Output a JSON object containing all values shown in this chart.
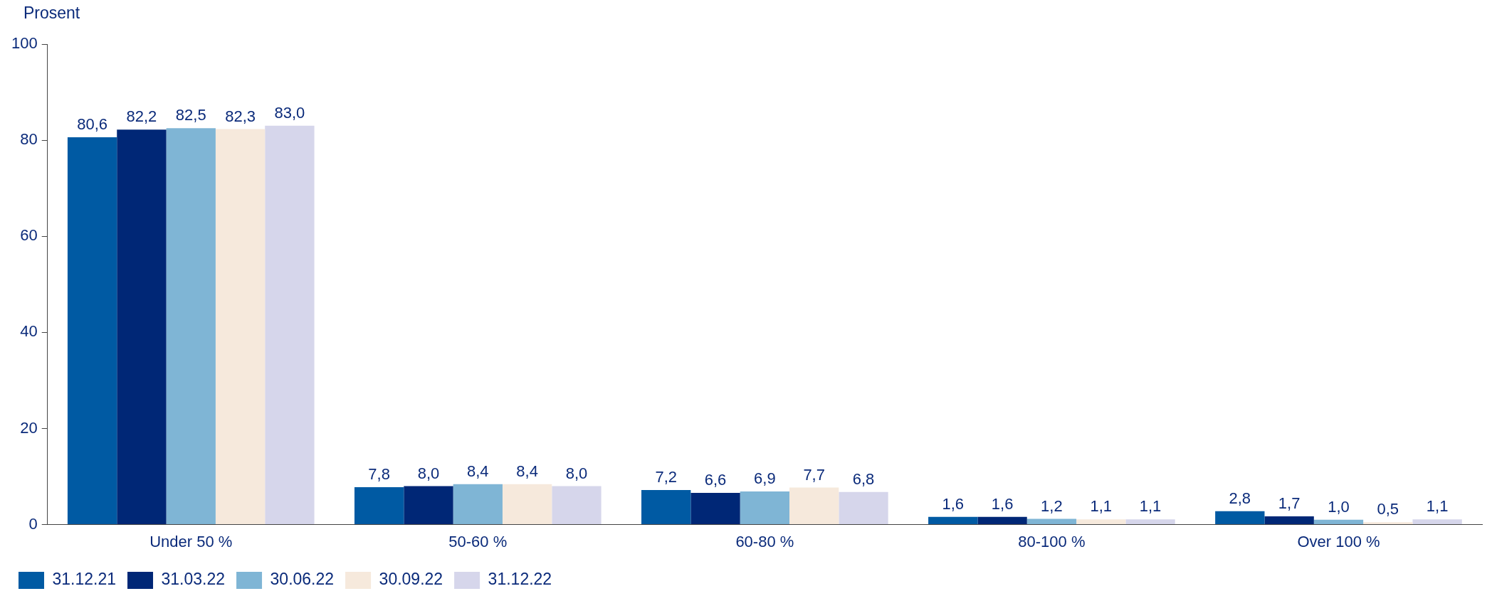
{
  "chart_data": {
    "type": "bar",
    "ylabel": "Prosent",
    "categories": [
      "Under 50 %",
      "50-60 %",
      "60-80 %",
      "80-100 %",
      "Over 100 %"
    ],
    "series": [
      {
        "name": "31.12.21",
        "color": "#005aa3",
        "values": [
          80.6,
          7.8,
          7.2,
          1.6,
          2.8
        ],
        "value_labels": [
          "80,6",
          "7,8",
          "7,2",
          "1,6",
          "2,8"
        ]
      },
      {
        "name": "31.03.22",
        "color": "#002776",
        "values": [
          82.2,
          8.0,
          6.6,
          1.6,
          1.7
        ],
        "value_labels": [
          "82,2",
          "8,0",
          "6,6",
          "1,6",
          "1,7"
        ]
      },
      {
        "name": "30.06.22",
        "color": "#7fb5d5",
        "values": [
          82.5,
          8.4,
          6.9,
          1.2,
          1.0
        ],
        "value_labels": [
          "82,5",
          "8,4",
          "6,9",
          "1,2",
          "1,0"
        ]
      },
      {
        "name": "30.09.22",
        "color": "#f6e9dc",
        "values": [
          82.3,
          8.4,
          7.7,
          1.1,
          0.5
        ],
        "value_labels": [
          "82,3",
          "8,4",
          "7,7",
          "1,1",
          "0,5"
        ]
      },
      {
        "name": "31.12.22",
        "color": "#d6d6eb",
        "values": [
          83.0,
          8.0,
          6.8,
          1.1,
          1.1
        ],
        "value_labels": [
          "83,0",
          "8,0",
          "6,8",
          "1,1",
          "1,1"
        ]
      }
    ],
    "ylim": [
      0,
      100
    ],
    "yticks": [
      0,
      20,
      40,
      60,
      80,
      100
    ],
    "grid": false,
    "legend": "bottom left"
  }
}
